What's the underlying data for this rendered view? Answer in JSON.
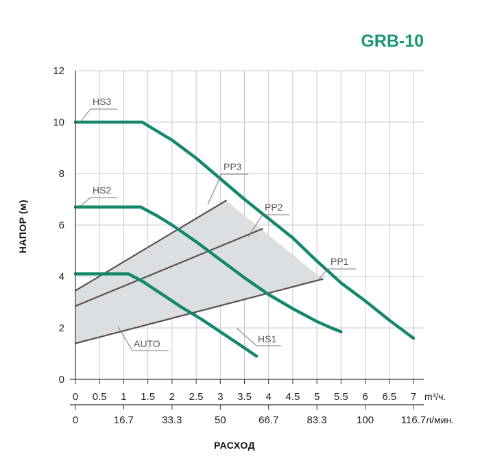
{
  "chart_data": {
    "type": "line",
    "title": "GRB-10",
    "ylabel": "НАПОР (м)",
    "xlabel": "РАСХОД",
    "xunit_primary": "m³/ч.",
    "xunit_secondary": "л/мин.",
    "ylim": [
      0,
      12
    ],
    "xlim": [
      0,
      7
    ],
    "grid": true,
    "yticks": [
      "0",
      "2",
      "4",
      "6",
      "8",
      "10",
      "12"
    ],
    "xticks_primary": [
      "0",
      "0.5",
      "1",
      "1.5",
      "2",
      "2.5",
      "3",
      "3.5",
      "4",
      "4.5",
      "5",
      "5.5",
      "6",
      "6.5",
      "7"
    ],
    "xticks_secondary": [
      {
        "x": 0,
        "label": "0"
      },
      {
        "x": 1,
        "label": "16.7"
      },
      {
        "x": 2,
        "label": "33.3"
      },
      {
        "x": 3,
        "label": "50"
      },
      {
        "x": 4,
        "label": "66.7"
      },
      {
        "x": 5,
        "label": "83.3"
      },
      {
        "x": 6,
        "label": "100"
      },
      {
        "x": 7,
        "label": "116.7"
      }
    ],
    "colors": {
      "title": "#1a9670",
      "curve": "#13876a",
      "proportional": "#5a4f55",
      "area": "#dcdfe1",
      "grid": "#c8c8c8",
      "axis": "#333333"
    },
    "series": [
      {
        "name": "HS3",
        "kind": "constant",
        "x": [
          0,
          1.38,
          2.0,
          2.5,
          3.0,
          3.5,
          4.0,
          4.5,
          5.0,
          5.5,
          6.0,
          6.5,
          7.0
        ],
        "y": [
          10.0,
          10.0,
          9.3,
          8.6,
          7.8,
          7.0,
          6.25,
          5.5,
          4.6,
          3.75,
          3.05,
          2.3,
          1.6
        ]
      },
      {
        "name": "HS2",
        "kind": "constant",
        "x": [
          0,
          1.35,
          1.7,
          2.0,
          2.5,
          3.0,
          3.5,
          4.0,
          4.5,
          5.0,
          5.3,
          5.5
        ],
        "y": [
          6.7,
          6.7,
          6.35,
          6.0,
          5.35,
          4.65,
          3.95,
          3.3,
          2.75,
          2.25,
          2.0,
          1.85
        ]
      },
      {
        "name": "HS1",
        "kind": "constant",
        "x": [
          0,
          1.1,
          1.4,
          1.8,
          2.2,
          2.6,
          3.0,
          3.4,
          3.75
        ],
        "y": [
          4.1,
          4.1,
          3.8,
          3.3,
          2.8,
          2.35,
          1.85,
          1.35,
          0.9
        ]
      },
      {
        "name": "PP3",
        "kind": "proportional",
        "x": [
          0,
          3.12
        ],
        "y": [
          3.45,
          6.95
        ]
      },
      {
        "name": "PP2",
        "kind": "proportional",
        "x": [
          0,
          3.87
        ],
        "y": [
          2.85,
          5.85
        ]
      },
      {
        "name": "PP1",
        "kind": "proportional",
        "x": [
          0,
          5.12
        ],
        "y": [
          1.4,
          3.9
        ]
      }
    ],
    "auto_area": {
      "name": "AUTO",
      "x": [
        0,
        3.12,
        5.12,
        0
      ],
      "y": [
        3.45,
        6.95,
        3.9,
        1.4
      ]
    },
    "annotations": [
      {
        "text": "HS3",
        "target": "HS3"
      },
      {
        "text": "HS2",
        "target": "HS2"
      },
      {
        "text": "HS1",
        "target": "HS1"
      },
      {
        "text": "PP3",
        "target": "PP3"
      },
      {
        "text": "PP2",
        "target": "PP2"
      },
      {
        "text": "PP1",
        "target": "PP1"
      },
      {
        "text": "AUTO",
        "target": "AUTO"
      }
    ]
  }
}
